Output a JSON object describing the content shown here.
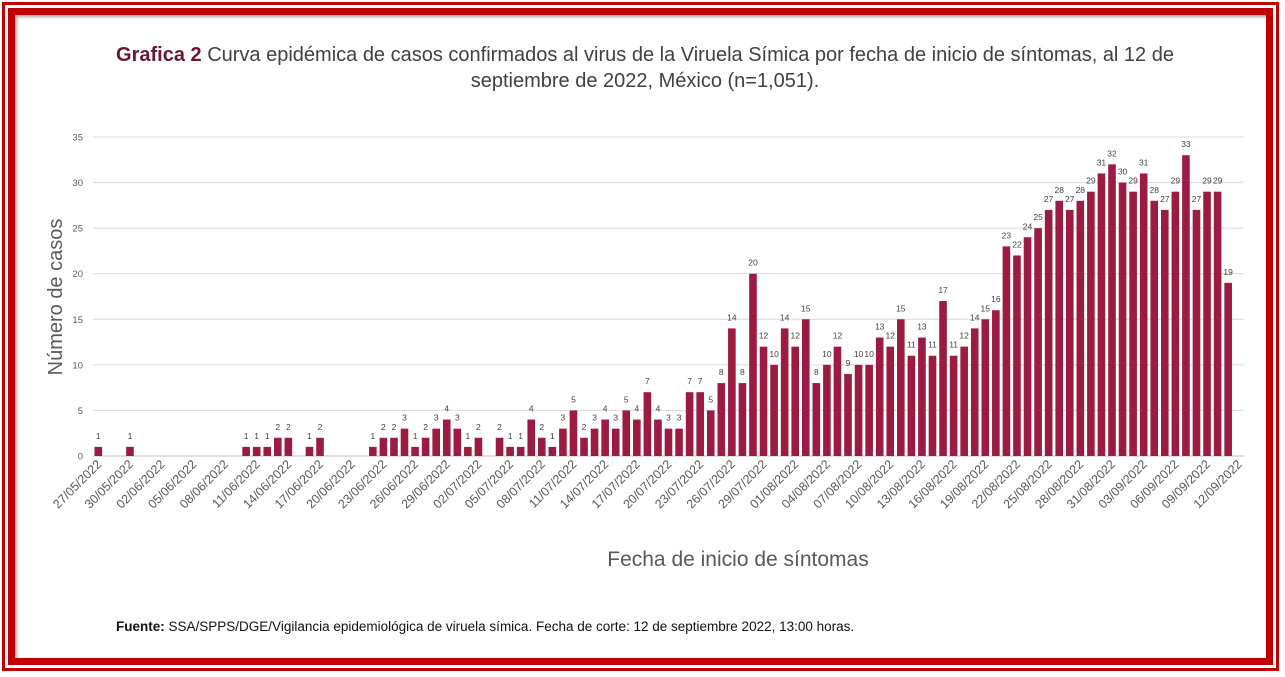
{
  "title": {
    "prefix": "Grafica 2",
    "text": "Curva epidémica de casos confirmados al virus de la Viruela Símica por fecha de inicio de síntomas, al 12 de septiembre de 2022, México (n=1,051)."
  },
  "source": {
    "label": "Fuente:",
    "text": "SSA/SPPS/DGE/Vigilancia epidemiológica de viruela símica. Fecha de corte: 12 de septiembre 2022, 13:00 horas."
  },
  "colors": {
    "bar": "#9b1b41",
    "frame": "#c00000",
    "grid": "#d9d9d9",
    "axis_text": "#595959"
  },
  "chart_data": {
    "type": "bar",
    "xlabel": "Fecha de inicio de síntomas",
    "ylabel": "Número de casos",
    "ylim": [
      0,
      35
    ],
    "yticks": [
      0,
      5,
      10,
      15,
      20,
      25,
      30,
      35
    ],
    "grid": true,
    "x_start": "27/05/2022",
    "x_ticks": [
      "27/05/2022",
      "30/05/2022",
      "02/06/2022",
      "05/06/2022",
      "08/06/2022",
      "11/06/2022",
      "14/06/2022",
      "17/06/2022",
      "20/06/2022",
      "23/06/2022",
      "26/06/2022",
      "29/06/2022",
      "02/07/2022",
      "05/07/2022",
      "08/07/2022",
      "11/07/2022",
      "14/07/2022",
      "17/07/2022",
      "20/07/2022",
      "23/07/2022",
      "26/07/2022",
      "29/07/2022",
      "01/08/2022",
      "04/08/2022",
      "07/08/2022",
      "10/08/2022",
      "13/08/2022",
      "16/08/2022",
      "19/08/2022",
      "22/08/2022",
      "25/08/2022",
      "28/08/2022",
      "31/08/2022",
      "03/09/2022",
      "06/09/2022",
      "09/09/2022",
      "12/09/2022"
    ],
    "values": [
      1,
      0,
      0,
      1,
      0,
      0,
      0,
      0,
      0,
      0,
      0,
      0,
      0,
      0,
      1,
      1,
      1,
      2,
      2,
      0,
      1,
      2,
      0,
      0,
      0,
      0,
      1,
      2,
      2,
      3,
      1,
      2,
      3,
      4,
      3,
      1,
      2,
      0,
      2,
      1,
      1,
      4,
      2,
      1,
      3,
      5,
      2,
      3,
      4,
      3,
      5,
      4,
      7,
      4,
      3,
      3,
      7,
      7,
      5,
      8,
      14,
      8,
      20,
      12,
      10,
      14,
      12,
      15,
      8,
      10,
      12,
      9,
      10,
      10,
      13,
      12,
      15,
      11,
      13,
      11,
      17,
      11,
      12,
      14,
      15,
      16,
      23,
      22,
      24,
      25,
      27,
      28,
      27,
      28,
      29,
      31,
      32,
      30,
      29,
      31,
      28,
      27,
      29,
      33,
      27,
      29,
      29,
      19
    ]
  }
}
